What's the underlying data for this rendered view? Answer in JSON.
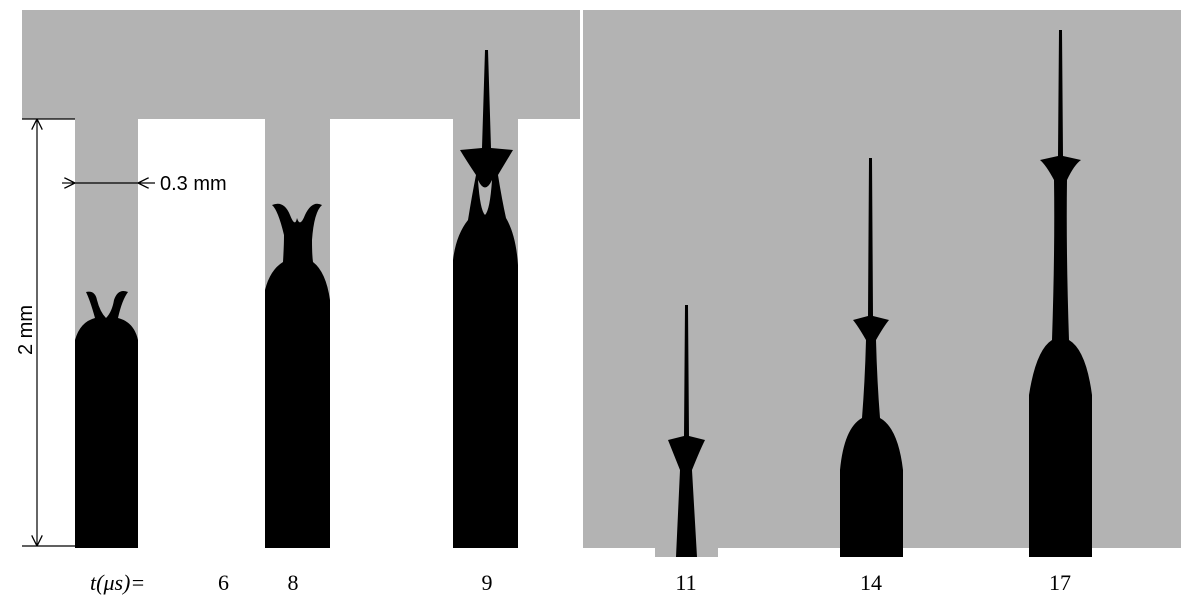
{
  "annotations": {
    "width": "0.3 mm",
    "height": "2 mm"
  },
  "time_label": "t(μs)=",
  "frames": [
    {
      "label": "6"
    },
    {
      "label": "8"
    },
    {
      "label": "9"
    },
    {
      "label": "11"
    },
    {
      "label": "14"
    },
    {
      "label": "17"
    }
  ]
}
